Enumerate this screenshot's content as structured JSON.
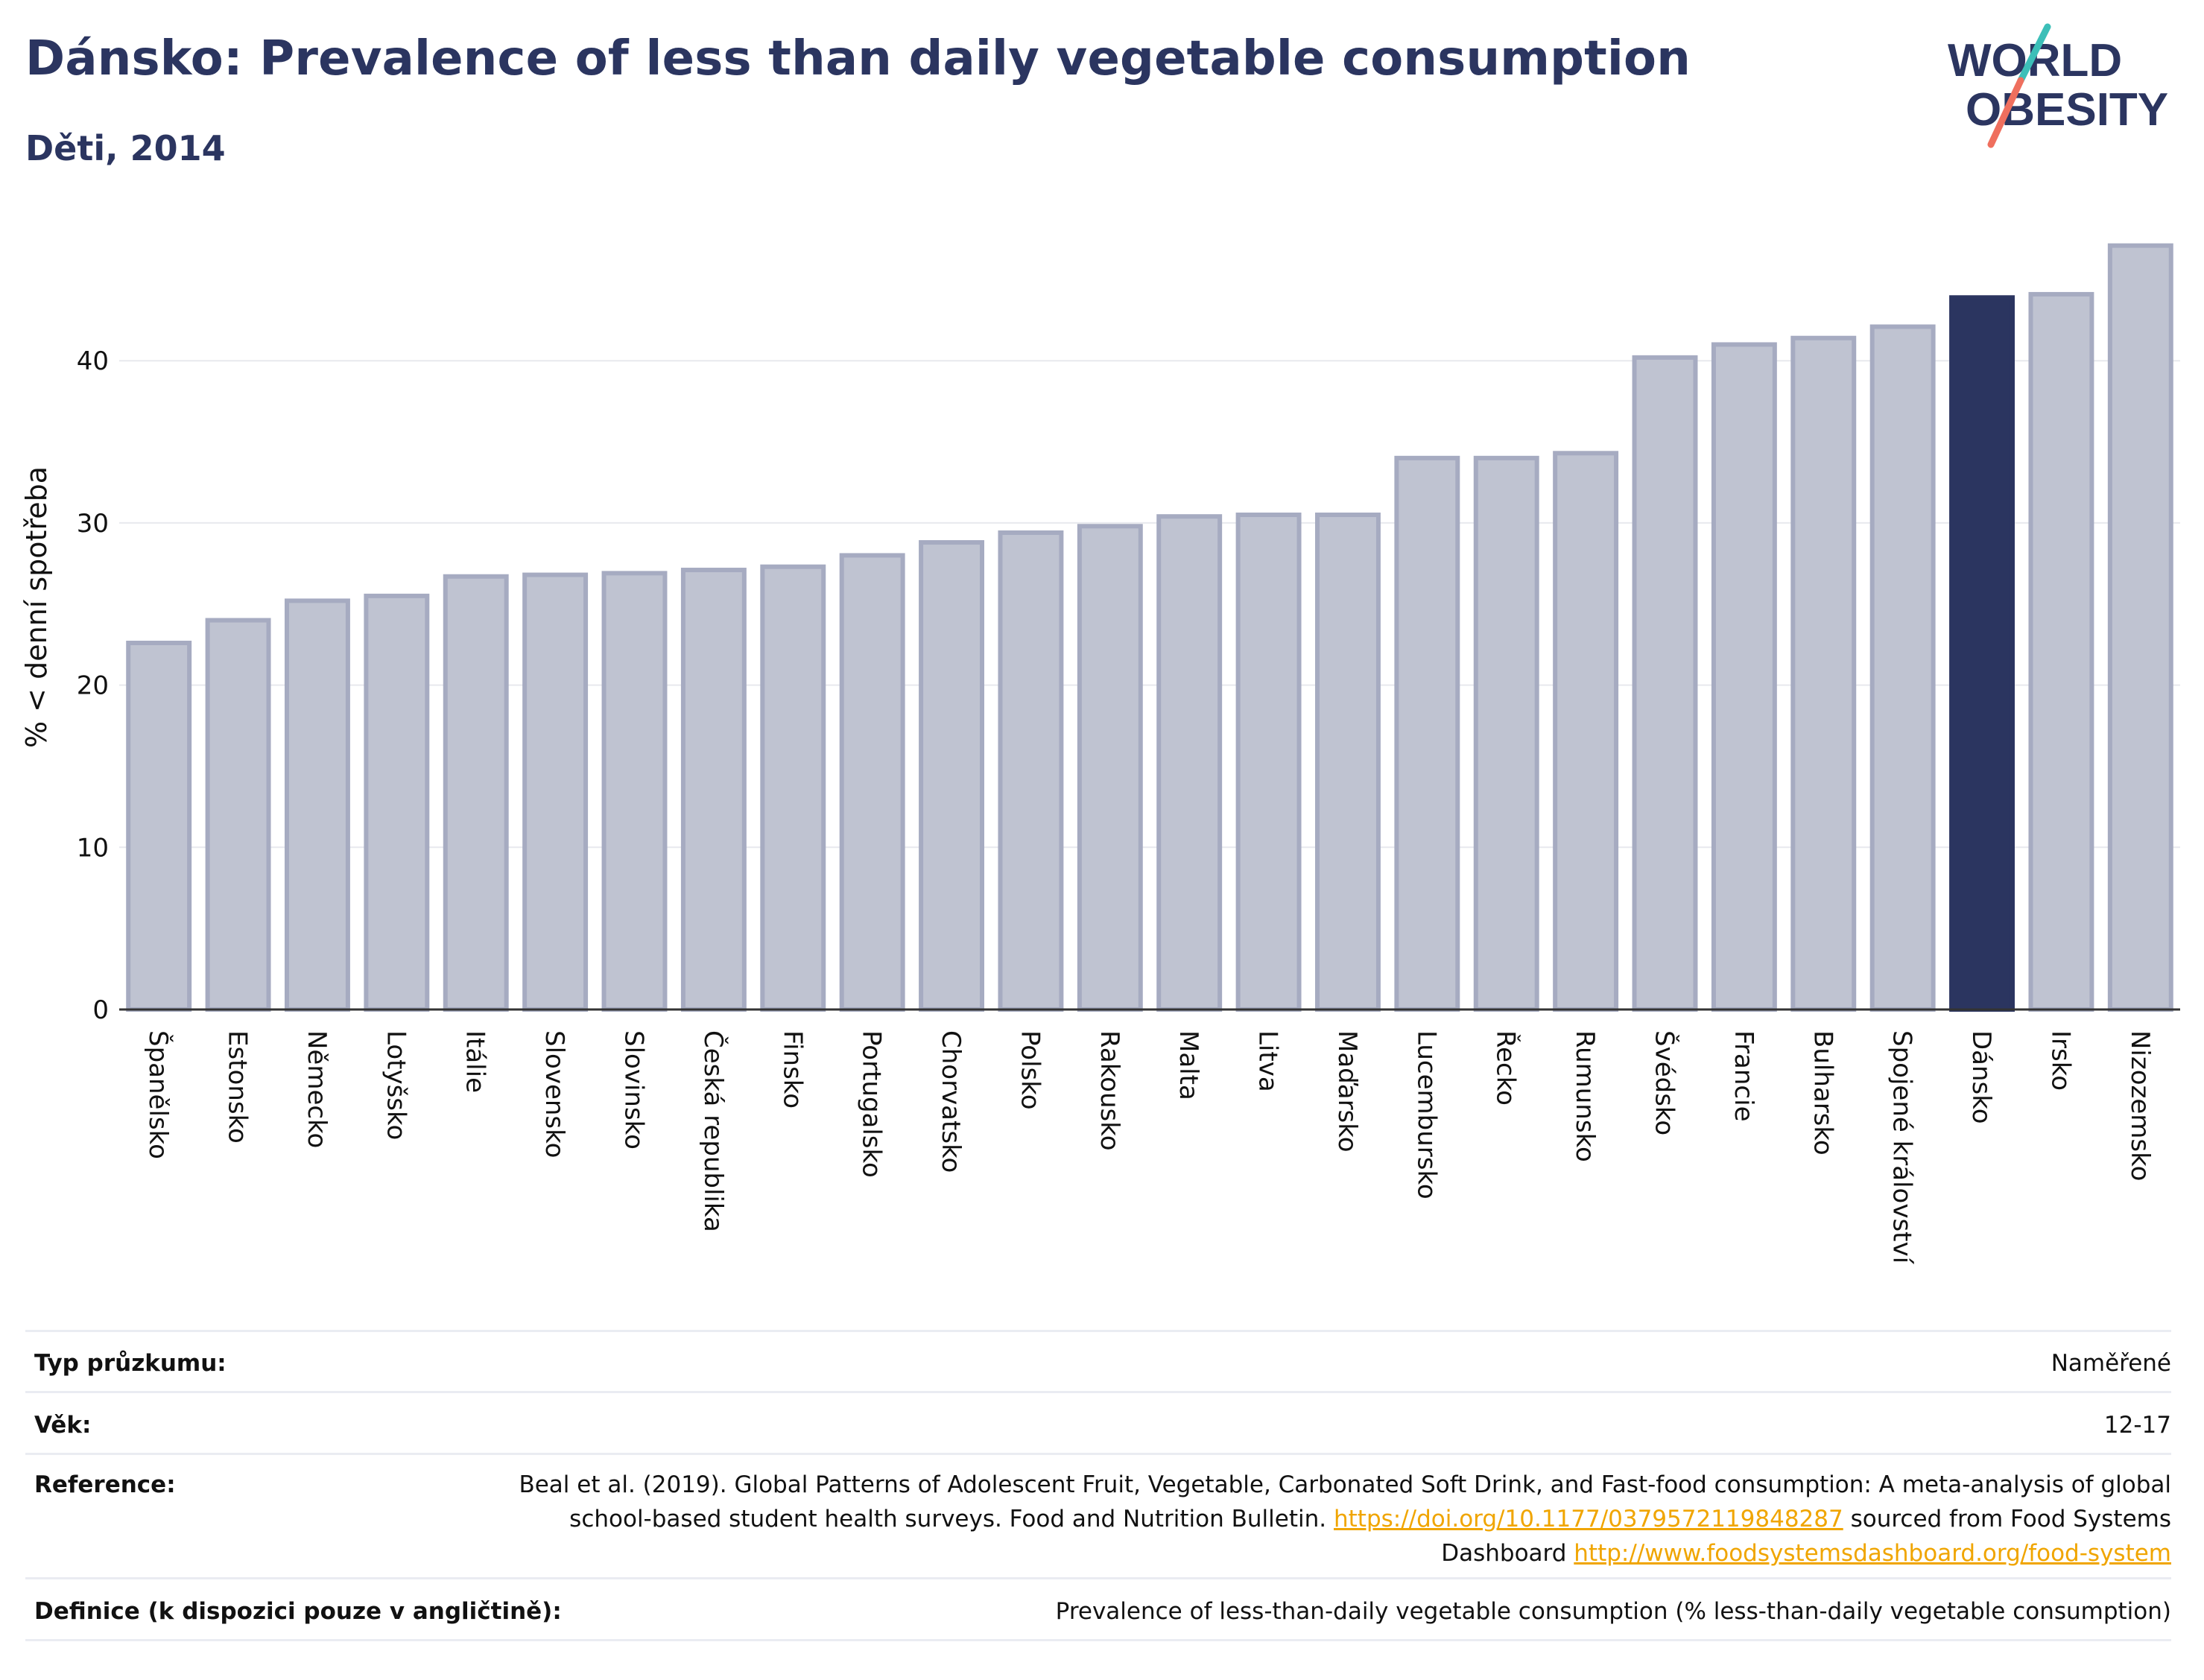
{
  "header": {
    "title": "Dánsko: Prevalence of less than daily vegetable consumption",
    "subtitle": "Děti, 2014"
  },
  "logo": {
    "line1": "WORLD",
    "line2": "OBESITY"
  },
  "colors": {
    "bar": "#bfc3d1",
    "bar_border": "#a6abc1",
    "highlight": "#2b3560",
    "grid": "#e8e9ee",
    "axis": "#333333",
    "logo_teal": "#3cbfb8",
    "logo_coral": "#ef6f5e"
  },
  "chart_data": {
    "type": "bar",
    "title": "Dánsko: Prevalence of less than daily vegetable consumption",
    "subtitle": "Děti, 2014",
    "xlabel": "",
    "ylabel": "% < denní spotřeba",
    "ylim": [
      0,
      48
    ],
    "yticks": [
      0,
      10,
      20,
      30,
      40
    ],
    "grid": true,
    "highlight_category": "Dánsko",
    "categories": [
      "Španělsko",
      "Estonsko",
      "Německo",
      "Lotyšsko",
      "Itálie",
      "Slovensko",
      "Slovinsko",
      "Česká republika",
      "Finsko",
      "Portugalsko",
      "Chorvatsko",
      "Polsko",
      "Rakousko",
      "Malta",
      "Litva",
      "Maďarsko",
      "Lucembursko",
      "Řecko",
      "Rumunsko",
      "Švédsko",
      "Francie",
      "Bulharsko",
      "Spojené království",
      "Dánsko",
      "Irsko",
      "Nizozemsko"
    ],
    "values": [
      22.6,
      24.0,
      25.2,
      25.5,
      26.7,
      26.8,
      26.9,
      27.1,
      27.3,
      28.0,
      28.8,
      29.4,
      29.8,
      30.4,
      30.5,
      30.5,
      34.0,
      34.0,
      34.3,
      40.2,
      41.0,
      41.4,
      42.1,
      43.9,
      44.1,
      47.1
    ]
  },
  "meta": {
    "survey_type": {
      "label": "Typ průzkumu:",
      "value": "Naměřené"
    },
    "age": {
      "label": "Věk:",
      "value": "12-17"
    },
    "reference": {
      "label": "Reference:",
      "text1": "Beal et al. (2019). Global Patterns of Adolescent Fruit, Vegetable, Carbonated Soft Drink, and Fast-food consumption: A meta-analysis of global school-based student health surveys. Food and Nutrition Bulletin.",
      "link1": "https://doi.org/10.1177/0379572119848287",
      "text2": "sourced from Food Systems Dashboard",
      "link2": "http://www.foodsystemsdashboard.org/food-system"
    },
    "definition": {
      "label": "Definice (k dispozici pouze v angličtině):",
      "value": "Prevalence of less-than-daily vegetable consumption (% less-than-daily vegetable consumption)"
    }
  }
}
